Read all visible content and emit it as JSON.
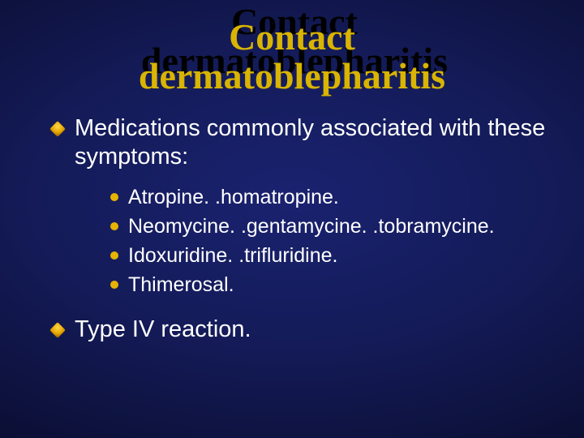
{
  "slide": {
    "title_line1": "Contact",
    "title_line2": "dermatoblepharitis",
    "title_fontsize": 46,
    "title_color": "#d9b400",
    "title_shadow_color": "#000000",
    "background_gradient": [
      "#1a2270",
      "#141b58",
      "#0c1038",
      "#060820"
    ],
    "body_fontsize_l1": 29,
    "body_fontsize_l2": 25,
    "text_color": "#ffffff",
    "bullet_l1_color": "#e7a600",
    "bullet_l2_color": "#e7b300",
    "items": [
      {
        "text": "Medications commonly associated with these symptoms:",
        "sub": [
          "Atropine. .homatropine.",
          "Neomycine. .gentamycine. .tobramycine.",
          "Idoxuridine. .trifluridine.",
          "Thimerosal."
        ]
      },
      {
        "text": "Type IV reaction.",
        "sub": []
      }
    ]
  }
}
